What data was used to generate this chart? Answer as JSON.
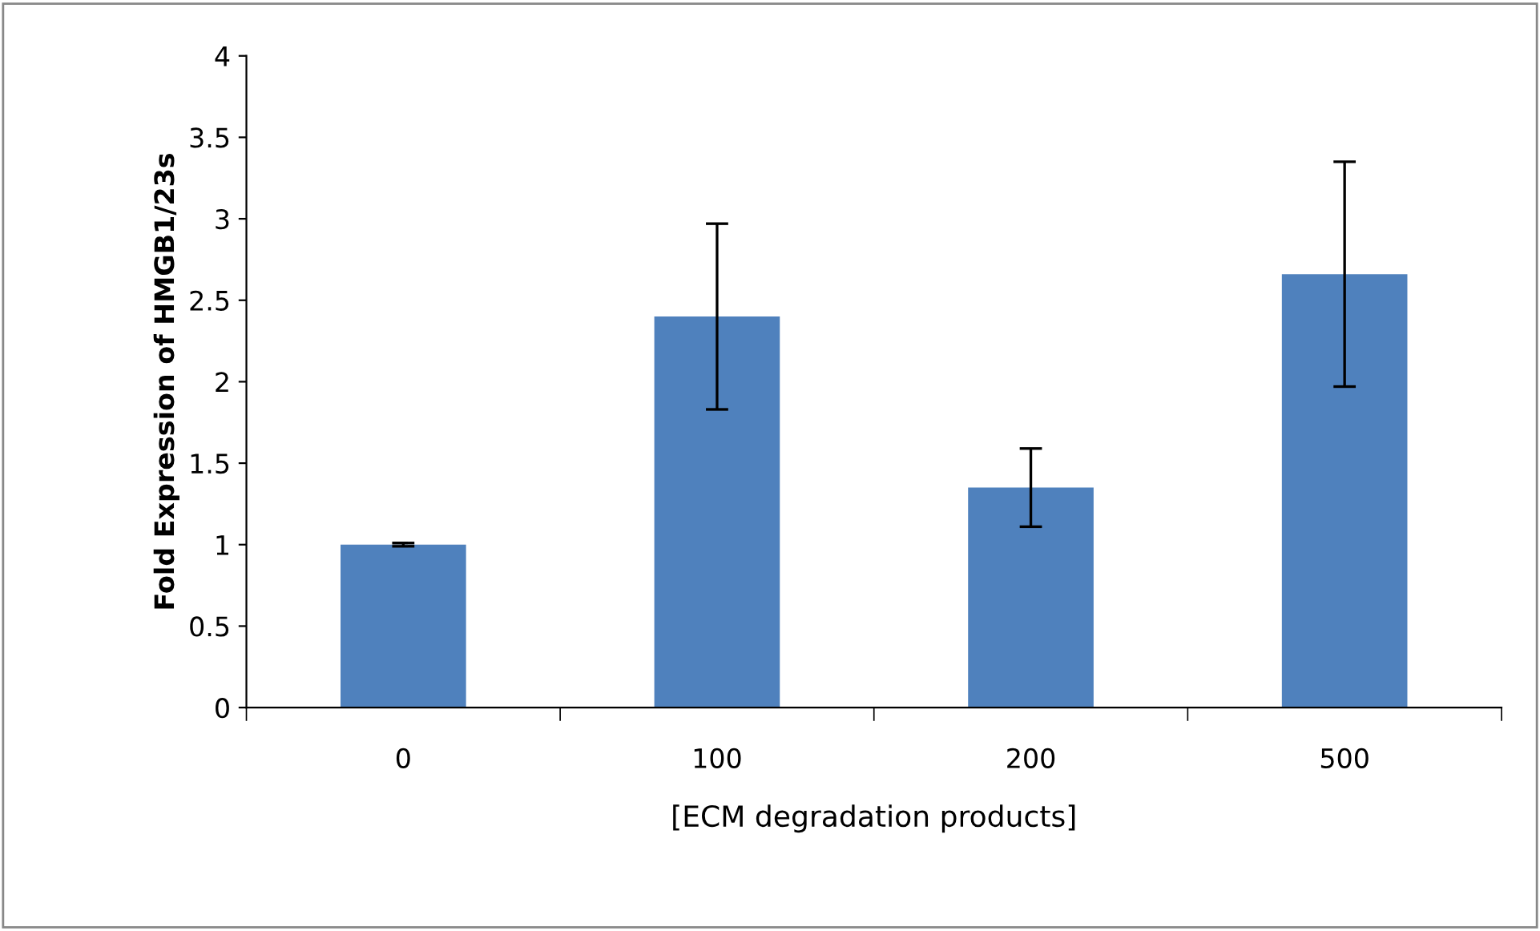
{
  "chart_data": {
    "type": "bar",
    "xlabel": "[ECM degradation products]",
    "ylabel": "Fold Expression of HMGB1/23s",
    "categories": [
      "0",
      "100",
      "200",
      "500"
    ],
    "values": [
      1.0,
      2.4,
      1.35,
      2.66
    ],
    "errors": [
      0.01,
      0.57,
      0.24,
      0.69
    ],
    "color": "#4f81bd",
    "ylim": [
      0,
      4
    ],
    "yticks": [
      0,
      {
        "value": 0.5,
        "label": "0.5"
      },
      1,
      {
        "value": 1.5,
        "label": "1.5"
      },
      2,
      {
        "value": 2.5,
        "label": "2.5"
      },
      3,
      {
        "value": 3.5,
        "label": "3.5"
      },
      4
    ],
    "grid": false,
    "legend": false
  }
}
